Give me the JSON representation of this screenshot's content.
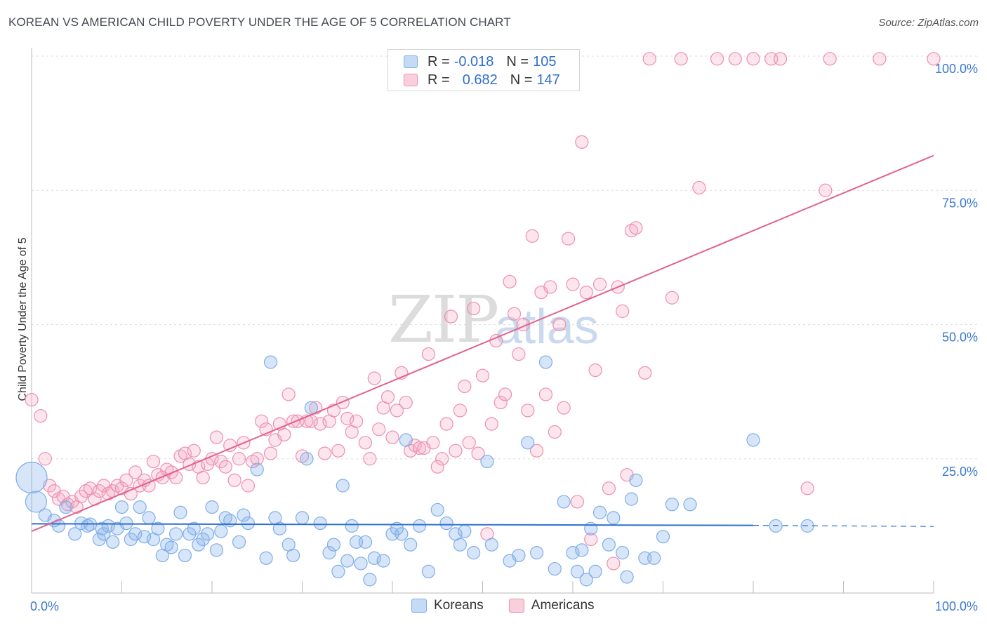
{
  "header": {
    "title": "KOREAN VS AMERICAN CHILD POVERTY UNDER THE AGE OF 5 CORRELATION CHART",
    "source": "Source: ZipAtlas.com"
  },
  "watermark": {
    "zip": "ZIP",
    "atlas": "atlas"
  },
  "legend": {
    "r_label": "R =",
    "n_label": "N =",
    "rows": [
      {
        "r": "-0.018",
        "n": "105",
        "color": "#7eaee8",
        "fill": "#c5dbf5"
      },
      {
        "r": "0.682",
        "n": "147",
        "color": "#ee8fad",
        "fill": "#f9cfdc"
      }
    ]
  },
  "bottom_legend": [
    {
      "label": "Koreans",
      "color": "#7eaee8",
      "fill": "#c5dbf5"
    },
    {
      "label": "Americans",
      "color": "#ee8fad",
      "fill": "#f9cfdc"
    }
  ],
  "chart_data": {
    "type": "scatter",
    "title": "KOREAN VS AMERICAN CHILD POVERTY UNDER THE AGE OF 5 CORRELATION CHART",
    "xlabel": "",
    "ylabel": "Child Poverty Under the Age of 5",
    "xlim": [
      0,
      100
    ],
    "ylim": [
      0,
      100
    ],
    "x_tick_labels": [
      "0.0%",
      "100.0%"
    ],
    "y_tick_labels": [
      "25.0%",
      "50.0%",
      "75.0%",
      "100.0%"
    ],
    "y_ticks": [
      25,
      50,
      75,
      100
    ],
    "grid": true,
    "legend_position": "top-center",
    "colors": {
      "korean": "#2f6fce",
      "american": "#e2628d"
    },
    "series": [
      {
        "name": "Koreans",
        "trend": {
          "x0": 0,
          "y0": 12.9,
          "x1": 80,
          "y1": 12.6,
          "dashed_to": 100,
          "dashed_y": 12.4
        },
        "points": [
          [
            0,
            21.5
          ],
          [
            0.5,
            17
          ],
          [
            1.5,
            14.5
          ],
          [
            2.5,
            13.5
          ],
          [
            3,
            12.5
          ],
          [
            3.8,
            16
          ],
          [
            4.8,
            11
          ],
          [
            5.5,
            13
          ],
          [
            6.2,
            12.5
          ],
          [
            6.5,
            12.8
          ],
          [
            7.5,
            10
          ],
          [
            7.8,
            12
          ],
          [
            8,
            11
          ],
          [
            8.5,
            12.5
          ],
          [
            9,
            9.5
          ],
          [
            9.5,
            12
          ],
          [
            10,
            16
          ],
          [
            10.5,
            13
          ],
          [
            11,
            10
          ],
          [
            11.5,
            11
          ],
          [
            12,
            16
          ],
          [
            12.5,
            10.5
          ],
          [
            13,
            14
          ],
          [
            13.5,
            10
          ],
          [
            14,
            12
          ],
          [
            14.5,
            7
          ],
          [
            15,
            9
          ],
          [
            15.5,
            8.5
          ],
          [
            16,
            11
          ],
          [
            16.5,
            15
          ],
          [
            17,
            7
          ],
          [
            17.5,
            11
          ],
          [
            18,
            12
          ],
          [
            18.5,
            9
          ],
          [
            19,
            10
          ],
          [
            19.5,
            11
          ],
          [
            20,
            16
          ],
          [
            20.5,
            8
          ],
          [
            21,
            11.5
          ],
          [
            21.5,
            14
          ],
          [
            22,
            13.5
          ],
          [
            23,
            9.5
          ],
          [
            23.5,
            14.5
          ],
          [
            24,
            13
          ],
          [
            25,
            23
          ],
          [
            26,
            6.5
          ],
          [
            26.5,
            43
          ],
          [
            27,
            14
          ],
          [
            27.5,
            12
          ],
          [
            28.5,
            9
          ],
          [
            29,
            7
          ],
          [
            30,
            14
          ],
          [
            30.5,
            25
          ],
          [
            31,
            34.5
          ],
          [
            32,
            13
          ],
          [
            33,
            7.5
          ],
          [
            33.5,
            9
          ],
          [
            34,
            4
          ],
          [
            34.5,
            20
          ],
          [
            35,
            6
          ],
          [
            35.5,
            12.5
          ],
          [
            36,
            9.5
          ],
          [
            36.5,
            5.5
          ],
          [
            37,
            9.5
          ],
          [
            37.5,
            2.5
          ],
          [
            38,
            6.5
          ],
          [
            39,
            6
          ],
          [
            40,
            11
          ],
          [
            40.5,
            12
          ],
          [
            41,
            11
          ],
          [
            41.5,
            28.5
          ],
          [
            42,
            9
          ],
          [
            43,
            12.5
          ],
          [
            44,
            4
          ],
          [
            45,
            15.5
          ],
          [
            46,
            13
          ],
          [
            47,
            11
          ],
          [
            47.5,
            9
          ],
          [
            48,
            11.5
          ],
          [
            49,
            7.5
          ],
          [
            50.5,
            24.5
          ],
          [
            51,
            9
          ],
          [
            53,
            6
          ],
          [
            54,
            7
          ],
          [
            55,
            28
          ],
          [
            56,
            7.5
          ],
          [
            57,
            43
          ],
          [
            58,
            4.5
          ],
          [
            59,
            17
          ],
          [
            60,
            7.5
          ],
          [
            60.5,
            4
          ],
          [
            61,
            8
          ],
          [
            61.5,
            2.5
          ],
          [
            62,
            12
          ],
          [
            62.5,
            4
          ],
          [
            63,
            15
          ],
          [
            64,
            9
          ],
          [
            64.5,
            14
          ],
          [
            65.5,
            7.5
          ],
          [
            66,
            3
          ],
          [
            66.5,
            17.5
          ],
          [
            67,
            21
          ],
          [
            68,
            6.5
          ],
          [
            69,
            6.5
          ],
          [
            70,
            10.5
          ],
          [
            71,
            16.5
          ],
          [
            73,
            16.5
          ],
          [
            80,
            28.5
          ],
          [
            82.5,
            12.5
          ],
          [
            86,
            12.5
          ]
        ]
      },
      {
        "name": "Americans",
        "trend": {
          "x0": 0,
          "y0": 11.5,
          "x1": 100,
          "y1": 81.5
        },
        "points": [
          [
            0,
            36
          ],
          [
            1,
            33
          ],
          [
            1.5,
            25
          ],
          [
            2,
            20
          ],
          [
            2.5,
            19
          ],
          [
            3,
            17.5
          ],
          [
            3.5,
            18
          ],
          [
            4,
            16.5
          ],
          [
            4.5,
            17
          ],
          [
            5,
            16
          ],
          [
            5.5,
            18
          ],
          [
            6,
            19
          ],
          [
            6.5,
            19.5
          ],
          [
            7,
            17.5
          ],
          [
            7.5,
            19
          ],
          [
            8,
            20
          ],
          [
            8.5,
            18.5
          ],
          [
            9,
            19
          ],
          [
            9.5,
            20
          ],
          [
            10,
            19.5
          ],
          [
            10.5,
            21
          ],
          [
            11,
            18.5
          ],
          [
            11.5,
            22.5
          ],
          [
            12,
            20
          ],
          [
            12.5,
            21
          ],
          [
            13,
            20
          ],
          [
            13.5,
            24.5
          ],
          [
            14,
            22
          ],
          [
            14.5,
            21.5
          ],
          [
            15,
            23
          ],
          [
            15.5,
            22.5
          ],
          [
            16,
            21.5
          ],
          [
            16.5,
            25.5
          ],
          [
            17,
            26
          ],
          [
            17.5,
            24
          ],
          [
            18,
            26.5
          ],
          [
            18.5,
            23.5
          ],
          [
            19,
            21.5
          ],
          [
            19.5,
            24
          ],
          [
            20,
            25
          ],
          [
            20.5,
            29
          ],
          [
            21,
            24.5
          ],
          [
            21.5,
            23.5
          ],
          [
            22,
            27.5
          ],
          [
            22.5,
            21
          ],
          [
            23,
            25
          ],
          [
            23.5,
            28
          ],
          [
            24,
            20
          ],
          [
            24.5,
            24.5
          ],
          [
            25,
            25
          ],
          [
            25.5,
            32
          ],
          [
            26,
            30.5
          ],
          [
            26.5,
            26
          ],
          [
            27,
            28.5
          ],
          [
            27.5,
            31.5
          ],
          [
            28,
            29.5
          ],
          [
            28.5,
            37
          ],
          [
            29,
            32
          ],
          [
            29.5,
            32
          ],
          [
            30,
            25.5
          ],
          [
            30.5,
            32
          ],
          [
            31,
            32
          ],
          [
            31.5,
            34.5
          ],
          [
            32,
            31.5
          ],
          [
            32.5,
            26
          ],
          [
            33,
            32
          ],
          [
            33.5,
            34
          ],
          [
            34,
            26.5
          ],
          [
            34.5,
            35.5
          ],
          [
            35,
            32.5
          ],
          [
            35.5,
            30
          ],
          [
            36,
            32
          ],
          [
            37,
            28
          ],
          [
            37.5,
            25
          ],
          [
            38,
            40
          ],
          [
            38.5,
            30.5
          ],
          [
            39,
            34.5
          ],
          [
            39.5,
            36.5
          ],
          [
            40,
            29
          ],
          [
            40.5,
            34
          ],
          [
            41,
            41
          ],
          [
            41.5,
            35.5
          ],
          [
            42,
            26.5
          ],
          [
            42.5,
            27.5
          ],
          [
            43,
            27
          ],
          [
            43.5,
            27
          ],
          [
            44,
            44.5
          ],
          [
            44.5,
            28
          ],
          [
            45,
            23.5
          ],
          [
            45.5,
            25
          ],
          [
            46,
            31.5
          ],
          [
            46.5,
            51.5
          ],
          [
            47,
            26.5
          ],
          [
            47.5,
            34
          ],
          [
            48,
            38.5
          ],
          [
            48.5,
            28
          ],
          [
            49,
            53
          ],
          [
            49.5,
            26
          ],
          [
            50,
            40.5
          ],
          [
            50.5,
            11
          ],
          [
            51,
            31.5
          ],
          [
            51.5,
            47
          ],
          [
            52,
            35.5
          ],
          [
            52.5,
            37
          ],
          [
            53,
            58
          ],
          [
            53.5,
            52
          ],
          [
            54,
            44.5
          ],
          [
            54.5,
            50
          ],
          [
            55,
            34
          ],
          [
            55.5,
            66.5
          ],
          [
            56,
            26.5
          ],
          [
            56.5,
            56
          ],
          [
            57,
            37
          ],
          [
            57.5,
            57
          ],
          [
            58,
            30
          ],
          [
            58.5,
            50
          ],
          [
            59,
            34.5
          ],
          [
            59.5,
            66
          ],
          [
            60,
            57.5
          ],
          [
            60.5,
            17
          ],
          [
            61,
            84
          ],
          [
            61.5,
            56
          ],
          [
            62,
            10
          ],
          [
            62.5,
            41.5
          ],
          [
            63,
            57.5
          ],
          [
            64,
            19.5
          ],
          [
            64.5,
            5.5
          ],
          [
            65,
            57
          ],
          [
            65.5,
            52.5
          ],
          [
            66,
            22
          ],
          [
            66.5,
            67.5
          ],
          [
            67,
            68
          ],
          [
            68,
            41
          ],
          [
            68.5,
            99.5
          ],
          [
            71,
            55
          ],
          [
            72,
            99.5
          ],
          [
            74,
            75.5
          ],
          [
            76,
            99.5
          ],
          [
            78,
            99.5
          ],
          [
            80,
            99.5
          ],
          [
            82,
            99.5
          ],
          [
            83,
            99.5
          ],
          [
            86,
            19.5
          ],
          [
            88,
            75
          ],
          [
            88.5,
            99.5
          ],
          [
            94,
            99.5
          ],
          [
            100,
            99.5
          ]
        ]
      }
    ]
  }
}
